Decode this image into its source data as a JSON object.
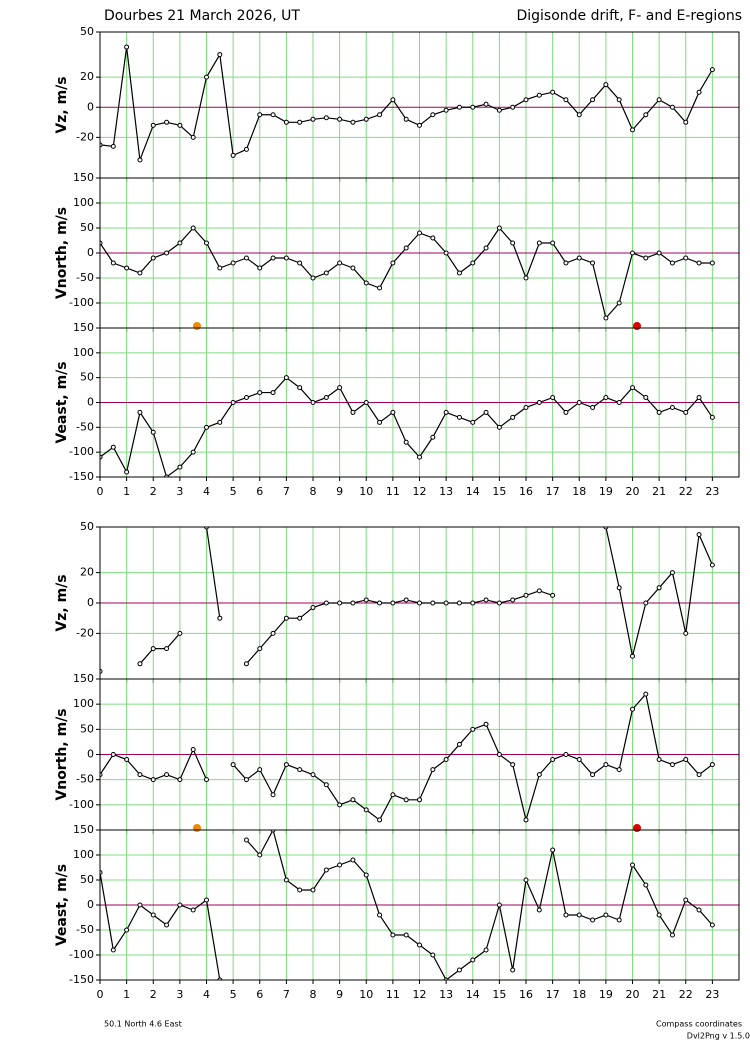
{
  "header": {
    "left": "Dourbes  21 March 2026, UT",
    "right": "Digisonde drift, F- and E-regions"
  },
  "footer": {
    "coords": "50.1 North   4.6 East",
    "system": "Compass coordinates",
    "version": "Dvl2Png v 1.5.0"
  },
  "chart_data": [
    {
      "type": "line",
      "ylabel": "Vz, m/s",
      "color": "#000000",
      "xlim": [
        0,
        24
      ],
      "ylim": [
        -47,
        50
      ],
      "yticks": [
        -20,
        0,
        20,
        50
      ],
      "xticks": [
        0,
        1,
        2,
        3,
        4,
        5,
        6,
        7,
        8,
        9,
        10,
        11,
        12,
        13,
        14,
        15,
        16,
        17,
        18,
        19,
        20,
        21,
        22,
        23
      ],
      "grid": true,
      "x": [
        0,
        0.5,
        1,
        1.5,
        2,
        2.5,
        3,
        3.5,
        4,
        4.5,
        5,
        5.5,
        6,
        6.5,
        7,
        7.5,
        8,
        8.5,
        9,
        9.5,
        10,
        10.5,
        11,
        11.5,
        12,
        12.5,
        13,
        13.5,
        14,
        14.5,
        15,
        15.5,
        16,
        16.5,
        17,
        17.5,
        18,
        18.5,
        19,
        19.5,
        20,
        20.5,
        21,
        21.5,
        22,
        22.5,
        23
      ],
      "values": [
        -25,
        -26,
        40,
        -35,
        -12,
        -10,
        -12,
        -20,
        20,
        35,
        -32,
        -28,
        -5,
        -5,
        -10,
        -10,
        -8,
        -7,
        -8,
        -10,
        -8,
        -5,
        5,
        -8,
        -12,
        -5,
        -2,
        0,
        0,
        2,
        -2,
        0,
        5,
        8,
        10,
        5,
        -5,
        5,
        15,
        5,
        -15,
        -5,
        5,
        0,
        -10,
        10,
        25
      ]
    },
    {
      "type": "line",
      "ylabel": "Vnorth, m/s",
      "color": "#000000",
      "xlim": [
        0,
        24
      ],
      "ylim": [
        -150,
        150
      ],
      "yticks": [
        -100,
        -50,
        0,
        50,
        100,
        150
      ],
      "xticks": [
        0,
        1,
        2,
        3,
        4,
        5,
        6,
        7,
        8,
        9,
        10,
        11,
        12,
        13,
        14,
        15,
        16,
        17,
        18,
        19,
        20,
        21,
        22,
        23
      ],
      "grid": true,
      "x": [
        0,
        0.5,
        1,
        1.5,
        2,
        2.5,
        3,
        3.5,
        4,
        4.5,
        5,
        5.5,
        6,
        6.5,
        7,
        7.5,
        8,
        8.5,
        9,
        9.5,
        10,
        10.5,
        11,
        11.5,
        12,
        12.5,
        13,
        13.5,
        14,
        14.5,
        15,
        15.5,
        16,
        16.5,
        17,
        17.5,
        18,
        18.5,
        19,
        19.5,
        20,
        20.5,
        21,
        21.5,
        22,
        22.5,
        23
      ],
      "values": [
        20,
        -20,
        -30,
        -40,
        -10,
        0,
        20,
        50,
        20,
        -30,
        -20,
        -10,
        -30,
        -10,
        -10,
        -20,
        -50,
        -40,
        -20,
        -30,
        -60,
        -70,
        -20,
        10,
        40,
        30,
        0,
        -40,
        -20,
        10,
        50,
        20,
        -50,
        20,
        20,
        -20,
        -10,
        -20,
        -130,
        -100,
        0,
        -10,
        0,
        -20,
        -10,
        -20,
        -20
      ]
    },
    {
      "type": "line",
      "ylabel": "Veast, m/s",
      "color": "#000000",
      "xlim": [
        0,
        24
      ],
      "ylim": [
        -150,
        150
      ],
      "yticks": [
        -150,
        -100,
        -50,
        0,
        50,
        100,
        150
      ],
      "xticks": [
        0,
        1,
        2,
        3,
        4,
        5,
        6,
        7,
        8,
        9,
        10,
        11,
        12,
        13,
        14,
        15,
        16,
        17,
        18,
        19,
        20,
        21,
        22,
        23
      ],
      "grid": true,
      "x": [
        0,
        0.5,
        1,
        1.5,
        2,
        2.5,
        3,
        3.5,
        4,
        4.5,
        5,
        5.5,
        6,
        6.5,
        7,
        7.5,
        8,
        8.5,
        9,
        9.5,
        10,
        10.5,
        11,
        11.5,
        12,
        12.5,
        13,
        13.5,
        14,
        14.5,
        15,
        15.5,
        16,
        16.5,
        17,
        17.5,
        18,
        18.5,
        19,
        19.5,
        20,
        20.5,
        21,
        21.5,
        22,
        22.5,
        23
      ],
      "values": [
        -110,
        -90,
        -140,
        -20,
        -60,
        -150,
        -130,
        -100,
        -50,
        -40,
        0,
        10,
        20,
        20,
        50,
        30,
        0,
        10,
        30,
        -20,
        0,
        -40,
        -20,
        -80,
        -110,
        -70,
        -20,
        -30,
        -40,
        -20,
        -50,
        -30,
        -10,
        0,
        10,
        -20,
        0,
        -10,
        10,
        0,
        30,
        10,
        -20,
        -10,
        -20,
        10,
        -30
      ]
    },
    {
      "type": "line",
      "ylabel": "Vz, m/s",
      "color": "#000000",
      "xlim": [
        0,
        24
      ],
      "ylim": [
        -50,
        50
      ],
      "yticks": [
        -20,
        0,
        20,
        50
      ],
      "xticks": [
        0,
        1,
        2,
        3,
        4,
        5,
        6,
        7,
        8,
        9,
        10,
        11,
        12,
        13,
        14,
        15,
        16,
        17,
        18,
        19,
        20,
        21,
        22,
        23
      ],
      "grid": true,
      "x": [
        0,
        0.5,
        1,
        1.5,
        2,
        2.5,
        3,
        3.5,
        4,
        4.5,
        5,
        5.5,
        6,
        6.5,
        7,
        7.5,
        8,
        8.5,
        9,
        9.5,
        10,
        10.5,
        11,
        11.5,
        12,
        12.5,
        13,
        13.5,
        14,
        14.5,
        15,
        15.5,
        16,
        16.5,
        17,
        17.5,
        18,
        18.5,
        19,
        19.5,
        20,
        20.5,
        21,
        21.5,
        22,
        22.5,
        23
      ],
      "values": [
        -45,
        null,
        null,
        -40,
        -30,
        -30,
        -20,
        null,
        50,
        -10,
        null,
        -40,
        -30,
        -20,
        -10,
        -10,
        -3,
        0,
        0,
        0,
        2,
        0,
        0,
        2,
        0,
        0,
        0,
        0,
        0,
        2,
        0,
        2,
        5,
        8,
        5,
        null,
        null,
        null,
        50,
        10,
        -35,
        0,
        10,
        20,
        -20,
        45,
        25
      ]
    },
    {
      "type": "line",
      "ylabel": "Vnorth, m/s",
      "color": "#000000",
      "xlim": [
        0,
        24
      ],
      "ylim": [
        -150,
        150
      ],
      "yticks": [
        -100,
        -50,
        0,
        50,
        100,
        150
      ],
      "xticks": [
        0,
        1,
        2,
        3,
        4,
        5,
        6,
        7,
        8,
        9,
        10,
        11,
        12,
        13,
        14,
        15,
        16,
        17,
        18,
        19,
        20,
        21,
        22,
        23
      ],
      "grid": true,
      "x": [
        0,
        0.5,
        1,
        1.5,
        2,
        2.5,
        3,
        3.5,
        4,
        4.5,
        5,
        5.5,
        6,
        6.5,
        7,
        7.5,
        8,
        8.5,
        9,
        9.5,
        10,
        10.5,
        11,
        11.5,
        12,
        12.5,
        13,
        13.5,
        14,
        14.5,
        15,
        15.5,
        16,
        16.5,
        17,
        17.5,
        18,
        18.5,
        19,
        19.5,
        20,
        20.5,
        21,
        21.5,
        22,
        22.5,
        23
      ],
      "values": [
        -40,
        0,
        -10,
        -40,
        -50,
        -40,
        -50,
        10,
        -50,
        null,
        -20,
        -50,
        -30,
        -80,
        -20,
        -30,
        -40,
        -60,
        -100,
        -90,
        -110,
        -130,
        -80,
        -90,
        -90,
        -30,
        -10,
        20,
        50,
        60,
        0,
        -20,
        -130,
        -40,
        -10,
        0,
        -10,
        -40,
        -20,
        -30,
        90,
        120,
        -10,
        -20,
        -10,
        -40,
        -20
      ]
    },
    {
      "type": "line",
      "ylabel": "Veast, m/s",
      "color": "#000000",
      "xlim": [
        0,
        24
      ],
      "ylim": [
        -150,
        150
      ],
      "yticks": [
        -150,
        -100,
        -50,
        0,
        50,
        100,
        150
      ],
      "xticks": [
        0,
        1,
        2,
        3,
        4,
        5,
        6,
        7,
        8,
        9,
        10,
        11,
        12,
        13,
        14,
        15,
        16,
        17,
        18,
        19,
        20,
        21,
        22,
        23
      ],
      "grid": true,
      "x": [
        0,
        0.5,
        1,
        1.5,
        2,
        2.5,
        3,
        3.5,
        4,
        4.5,
        5,
        5.5,
        6,
        6.5,
        7,
        7.5,
        8,
        8.5,
        9,
        9.5,
        10,
        10.5,
        11,
        11.5,
        12,
        12.5,
        13,
        13.5,
        14,
        14.5,
        15,
        15.5,
        16,
        16.5,
        17,
        17.5,
        18,
        18.5,
        19,
        19.5,
        20,
        20.5,
        21,
        21.5,
        22,
        22.5,
        23
      ],
      "values": [
        65,
        -90,
        -50,
        0,
        -20,
        -40,
        0,
        -10,
        10,
        -150,
        null,
        130,
        100,
        150,
        50,
        30,
        30,
        70,
        80,
        90,
        60,
        -20,
        -60,
        -60,
        -80,
        -100,
        -150,
        -130,
        -110,
        -90,
        0,
        -130,
        50,
        -10,
        110,
        -20,
        -20,
        -30,
        -20,
        -30,
        80,
        40,
        -20,
        -60,
        10,
        -10,
        -40
      ]
    }
  ]
}
